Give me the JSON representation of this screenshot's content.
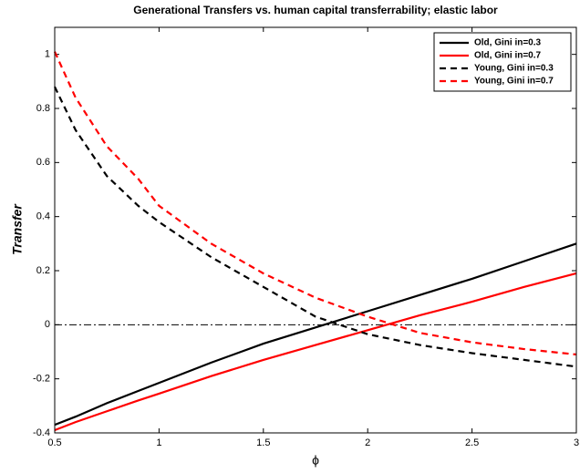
{
  "chart_data": {
    "type": "line",
    "title": "Generational Transfers vs. human capital transferrability; elastic labor",
    "x_label": "ϕ",
    "y_label": "Transfer",
    "x": [
      0.5,
      0.6,
      0.75,
      0.9,
      1,
      1.25,
      1.5,
      1.75,
      2,
      2.25,
      2.5,
      2.75,
      3
    ],
    "series": [
      {
        "name": "Old, Gini in=0.3",
        "color": "#000000",
        "dash": "solid",
        "values": [
          -0.37,
          -0.34,
          -0.29,
          -0.245,
          -0.215,
          -0.14,
          -0.07,
          -0.01,
          0.05,
          0.11,
          0.17,
          0.235,
          0.3
        ]
      },
      {
        "name": "Old, Gini in=0.7",
        "color": "#ff0000",
        "dash": "solid",
        "values": [
          -0.39,
          -0.36,
          -0.32,
          -0.28,
          -0.255,
          -0.19,
          -0.13,
          -0.075,
          -0.02,
          0.035,
          0.085,
          0.14,
          0.19
        ]
      },
      {
        "name": "Young, Gini in=0.3",
        "color": "#000000",
        "dash": "dashed",
        "values": [
          0.88,
          0.72,
          0.55,
          0.44,
          0.38,
          0.25,
          0.14,
          0.03,
          -0.035,
          -0.075,
          -0.105,
          -0.13,
          -0.155
        ]
      },
      {
        "name": "Young, Gini in=0.7",
        "color": "#ff0000",
        "dash": "dashed",
        "values": [
          1.01,
          0.84,
          0.66,
          0.54,
          0.44,
          0.3,
          0.19,
          0.1,
          0.03,
          -0.03,
          -0.065,
          -0.09,
          -0.11
        ]
      }
    ],
    "reference_line": 0,
    "xlim": [
      0.5,
      3
    ],
    "ylim": [
      -0.4,
      1.1
    ],
    "xticks": [
      0.5,
      1,
      1.5,
      2,
      2.5,
      3
    ],
    "yticks": [
      -0.4,
      -0.2,
      0,
      0.2,
      0.4,
      0.6,
      0.8,
      1
    ],
    "legend": "upper right"
  }
}
